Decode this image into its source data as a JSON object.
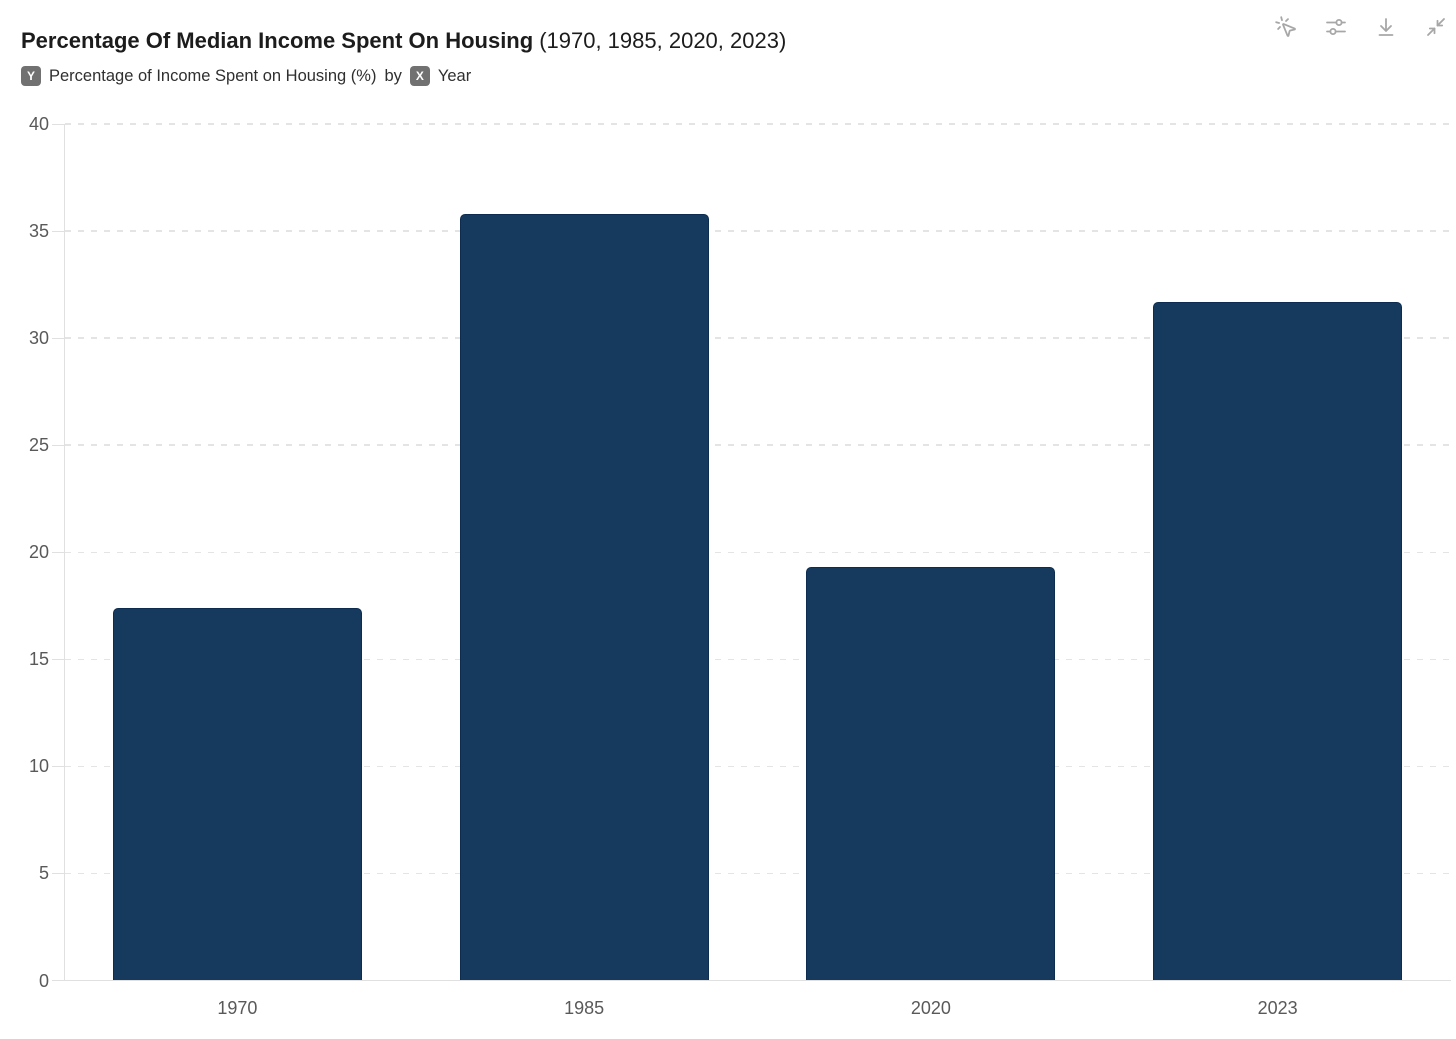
{
  "header": {
    "title_main": "Percentage Of Median Income Spent On Housing",
    "title_paren": "(1970, 1985, 2020, 2023)"
  },
  "subtitle": {
    "y_badge": "Y",
    "y_text": "Percentage of Income Spent on Housing (%)",
    "by_text": "by",
    "x_badge": "X",
    "x_text": "Year"
  },
  "toolbar": {
    "icons": [
      "pointer-click",
      "settings-sliders",
      "download",
      "collapse"
    ]
  },
  "colors": {
    "bar": "#163a5e",
    "bar_border": "#0d2c4f",
    "gridline": "#e4e4e4",
    "axis_line": "#e0e0e0",
    "axis_text": "#595959",
    "title": "#1c1c1c",
    "subtitle_text": "#2f2f2f",
    "badge_bg": "#717171",
    "icon": "#a7a7a7"
  },
  "chart_data": {
    "type": "bar",
    "categories": [
      "1970",
      "1985",
      "2020",
      "2023"
    ],
    "values": [
      17.4,
      35.8,
      19.3,
      31.7
    ],
    "title": "Percentage Of Median Income Spent On Housing (1970, 1985, 2020, 2023)",
    "xlabel": "Year",
    "ylabel": "Percentage of Income Spent on Housing (%)",
    "ylim": [
      0,
      40
    ],
    "yticks": [
      0,
      5,
      10,
      15,
      20,
      25,
      30,
      35,
      40
    ],
    "grid": "dashed-horizontal",
    "legend": false,
    "bar_color": "#163a5e"
  }
}
